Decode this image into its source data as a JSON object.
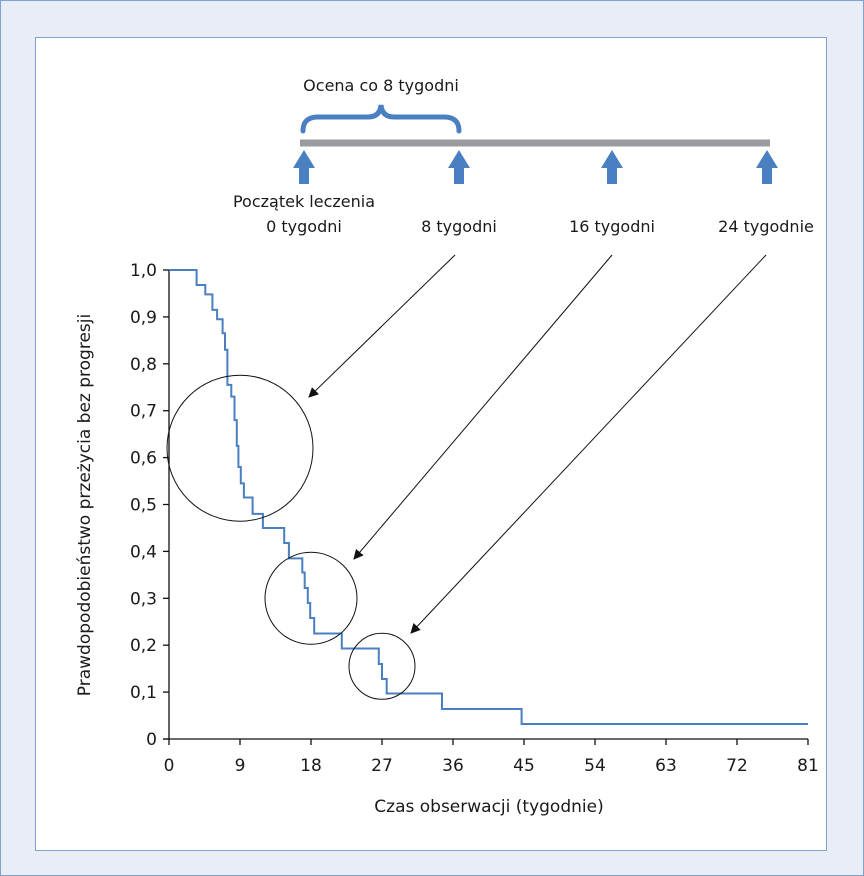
{
  "schedule": {
    "brace_label": "Ocena co 8 tygodni",
    "start_label": "Początek leczenia",
    "timepoints": [
      "0 tygodni",
      "8 tygodni",
      "16 tygodni",
      "24 tygodnie"
    ]
  },
  "chart_data": {
    "type": "line",
    "xlabel": "Czas obserwacji (tygodnie)",
    "ylabel": "Prawdopodobieństwo przeżycia bez progresji",
    "xlim": [
      0,
      81
    ],
    "ylim": [
      0,
      1
    ],
    "x_ticks": [
      0,
      9,
      18,
      27,
      36,
      45,
      54,
      63,
      72,
      81
    ],
    "y_ticks": [
      0,
      0.1,
      0.2,
      0.3,
      0.4,
      0.5,
      0.6,
      0.7,
      0.8,
      0.9,
      1.0
    ],
    "x_tick_labels": [
      "0",
      "9",
      "18",
      "27",
      "36",
      "45",
      "54",
      "63",
      "72",
      "81"
    ],
    "y_tick_labels": [
      "0",
      "0,1",
      "0,2",
      "0,3",
      "0,4",
      "0,5",
      "0,6",
      "0,7",
      "0,8",
      "0,9",
      "1,0"
    ],
    "series": [
      {
        "color": "#4a7fc1",
        "step_points": [
          [
            0,
            1.0
          ],
          [
            3.5,
            1.0
          ],
          [
            3.5,
            0.968
          ],
          [
            4.6,
            0.968
          ],
          [
            4.6,
            0.948
          ],
          [
            5.5,
            0.948
          ],
          [
            5.5,
            0.915
          ],
          [
            6.1,
            0.915
          ],
          [
            6.1,
            0.895
          ],
          [
            6.8,
            0.895
          ],
          [
            6.8,
            0.865
          ],
          [
            7.1,
            0.865
          ],
          [
            7.1,
            0.83
          ],
          [
            7.4,
            0.83
          ],
          [
            7.4,
            0.755
          ],
          [
            7.9,
            0.755
          ],
          [
            7.9,
            0.73
          ],
          [
            8.3,
            0.73
          ],
          [
            8.3,
            0.68
          ],
          [
            8.6,
            0.68
          ],
          [
            8.6,
            0.625
          ],
          [
            8.8,
            0.625
          ],
          [
            8.8,
            0.58
          ],
          [
            9.1,
            0.58
          ],
          [
            9.1,
            0.545
          ],
          [
            9.5,
            0.545
          ],
          [
            9.5,
            0.515
          ],
          [
            10.6,
            0.515
          ],
          [
            10.6,
            0.48
          ],
          [
            11.9,
            0.48
          ],
          [
            11.9,
            0.45
          ],
          [
            14.6,
            0.45
          ],
          [
            14.6,
            0.418
          ],
          [
            15.2,
            0.418
          ],
          [
            15.2,
            0.385
          ],
          [
            16.9,
            0.385
          ],
          [
            16.9,
            0.355
          ],
          [
            17.2,
            0.355
          ],
          [
            17.2,
            0.322
          ],
          [
            17.6,
            0.322
          ],
          [
            17.6,
            0.29
          ],
          [
            17.9,
            0.29
          ],
          [
            17.9,
            0.258
          ],
          [
            18.4,
            0.258
          ],
          [
            18.4,
            0.225
          ],
          [
            21.9,
            0.225
          ],
          [
            21.9,
            0.193
          ],
          [
            26.6,
            0.193
          ],
          [
            26.6,
            0.16
          ],
          [
            27.0,
            0.16
          ],
          [
            27.0,
            0.128
          ],
          [
            27.6,
            0.128
          ],
          [
            27.6,
            0.097
          ],
          [
            34.6,
            0.097
          ],
          [
            34.6,
            0.064
          ],
          [
            44.7,
            0.064
          ],
          [
            44.7,
            0.032
          ],
          [
            81,
            0.032
          ]
        ]
      }
    ],
    "highlight_circles": [
      {
        "x": 9,
        "y": 0.62
      },
      {
        "x": 18,
        "y": 0.3
      },
      {
        "x": 27,
        "y": 0.155
      }
    ]
  }
}
